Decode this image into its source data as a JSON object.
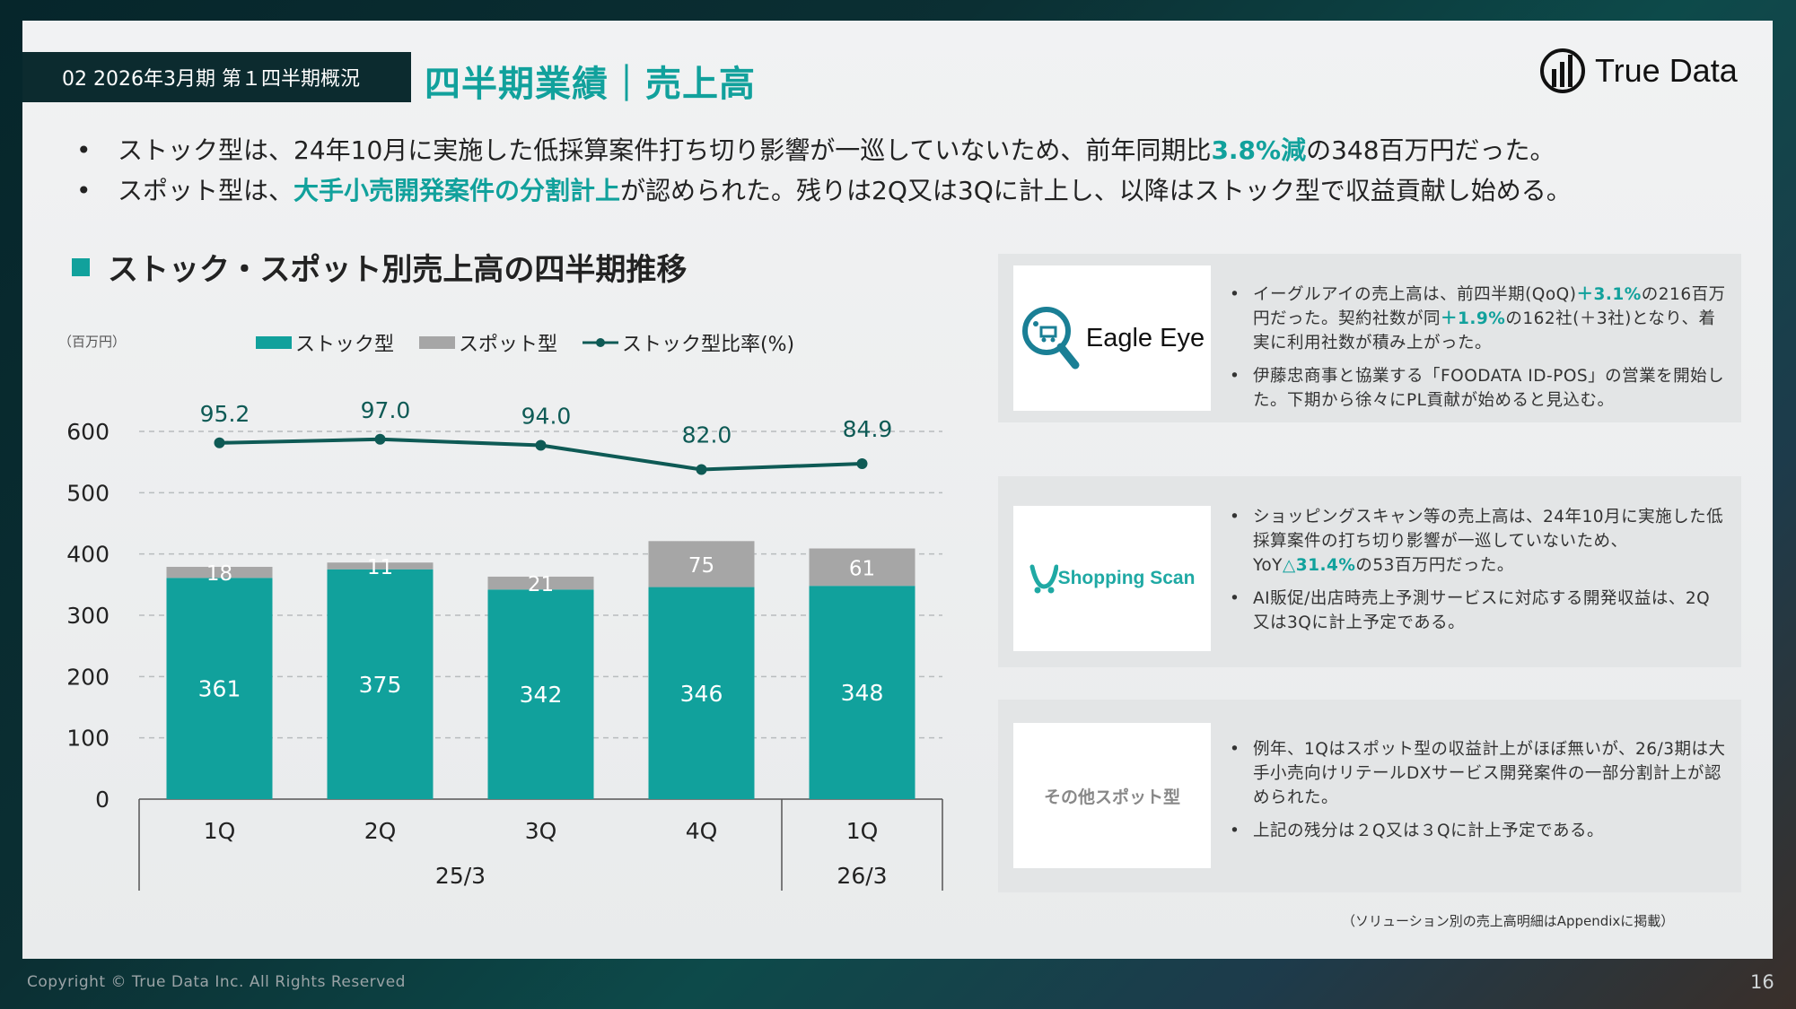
{
  "header": {
    "section_tag": "02 2026年3月期 第１四半期概況",
    "title": "四半期業績｜売上高",
    "logo_text": "True Data"
  },
  "summary": [
    {
      "pre": "ストック型は、24年10月に実施した低採算案件打ち切り影響が一巡していないため、前年同期比",
      "highlight": "3.8%減",
      "post": "の348百万円だった。"
    },
    {
      "pre": "スポット型は、",
      "highlight": "大手小売開発案件の分割計上",
      "post": "が認められた。残りは2Q又は3Qに計上し、以降はストック型で収益貢献し始める。"
    }
  ],
  "chart_heading": "ストック・スポット別売上高の四半期推移",
  "chart_data": {
    "type": "bar",
    "unit_label": "（百万円）",
    "categories": [
      "1Q",
      "2Q",
      "3Q",
      "4Q",
      "1Q"
    ],
    "groups": [
      {
        "label": "25/3",
        "span": 4
      },
      {
        "label": "26/3",
        "span": 1
      }
    ],
    "series": [
      {
        "name": "ストック型",
        "values": [
          361,
          375,
          342,
          346,
          348
        ],
        "color": "#11a19c"
      },
      {
        "name": "スポット型",
        "values": [
          18,
          11,
          21,
          75,
          61
        ],
        "color": "#a6a6a6"
      }
    ],
    "line_series": {
      "name": "ストック型比率(%)",
      "values": [
        95.2,
        97.0,
        94.0,
        82.0,
        84.9
      ],
      "labels": [
        "95.2",
        "97.0",
        "94.0",
        "82.0",
        "84.9"
      ],
      "color": "#0e5a55"
    },
    "ylim": [
      0,
      600
    ],
    "yticks": [
      "0",
      "100",
      "200",
      "300",
      "400",
      "500",
      "600"
    ],
    "grid": true,
    "legend_position": "top"
  },
  "cards": [
    {
      "logo_text": "Eagle Eye",
      "bullets": [
        [
          {
            "t": "イーグルアイの売上高は、前四半期(QoQ)"
          },
          {
            "t": "＋3.1%",
            "hl": true
          },
          {
            "t": "の216百万円だった。契約社数が同"
          },
          {
            "t": "＋1.9%",
            "hl": true
          },
          {
            "t": "の162社(＋3社)となり、着実に利用社数が積み上がった。"
          }
        ],
        [
          {
            "t": "伊藤忠商事と協業する「FOODATA ID-POS」の営業を開始した。下期から徐々にPL貢献が始めると見込む。"
          }
        ]
      ]
    },
    {
      "logo_text": "Shopping Scan",
      "bullets": [
        [
          {
            "t": "ショッピングスキャン等の売上高は、24年10月に実施した低採算案件の打ち切り影響が一巡していないため、YoY"
          },
          {
            "t": "△31.4%",
            "hl": true
          },
          {
            "t": "の53百万円だった。"
          }
        ],
        [
          {
            "t": "AI販促/出店時売上予測サービスに対応する開発収益は、2Q又は3Qに計上予定である。"
          }
        ]
      ]
    },
    {
      "logo_text": "その他スポット型",
      "bullets": [
        [
          {
            "t": "例年、1Qはスポット型の収益計上がほぼ無いが、26/3期は大手小売向けリテールDXサービス開発案件の一部分割計上が認められた。"
          }
        ],
        [
          {
            "t": "上記の残分は２Q又は３Qに計上予定である。"
          }
        ]
      ]
    }
  ],
  "footnote": "（ソリューション別の売上高明細はAppendixに掲載）",
  "footer": {
    "copyright": "Copyright © True Data Inc. All Rights Reserved",
    "page_number": "16"
  },
  "colors": {
    "accent": "#11a19c",
    "dark": "#0c2b2f",
    "spot": "#a6a6a6"
  }
}
